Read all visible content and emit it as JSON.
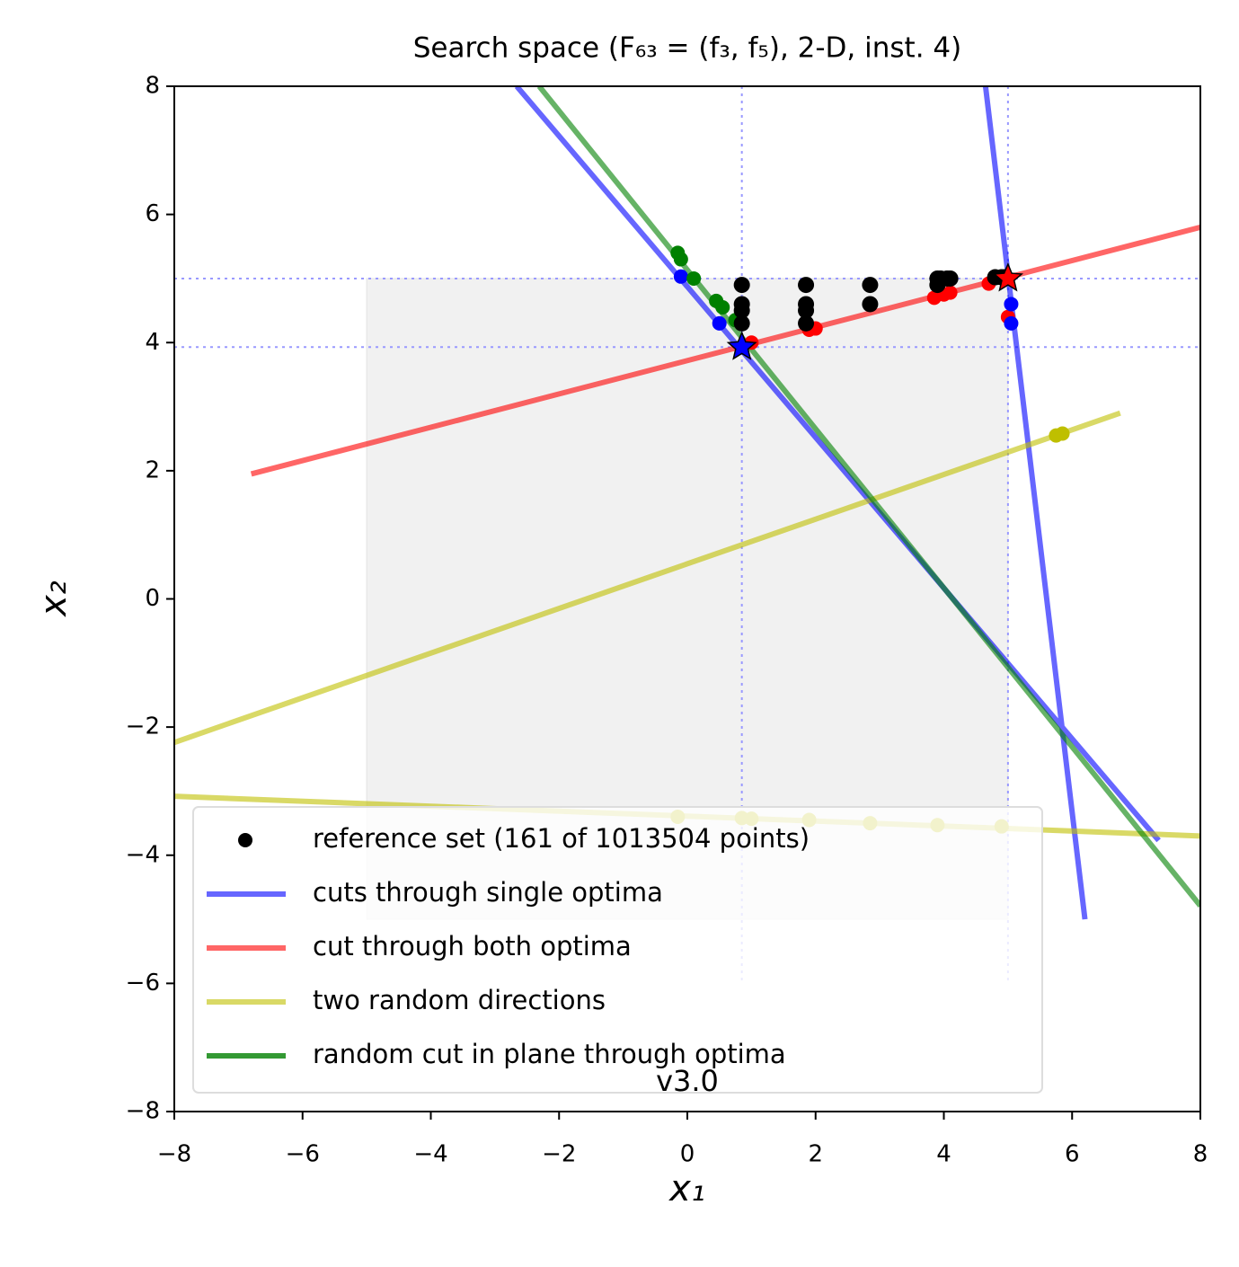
{
  "chart_data": {
    "type": "line",
    "title": "Search space (F₆₃ = (f₃, f₅), 2-D, inst. 4)",
    "x_label": "x₁",
    "y_label": "x₂",
    "watermark": "v3.0",
    "xlim": [
      -8,
      8
    ],
    "ylim": [
      -8,
      8
    ],
    "xticks": [
      {
        "value": -8,
        "label": "−8"
      },
      {
        "value": -6,
        "label": "−6"
      },
      {
        "value": -4,
        "label": "−4"
      },
      {
        "value": -2,
        "label": "−2"
      },
      0,
      2,
      4,
      6,
      8
    ],
    "yticks": [
      {
        "value": -8,
        "label": "−8"
      },
      {
        "value": -6,
        "label": "−6"
      },
      {
        "value": -4,
        "label": "−4"
      },
      {
        "value": -2,
        "label": "−2"
      },
      0,
      2,
      4,
      6,
      8
    ],
    "region": {
      "xlim": [
        -5,
        5
      ],
      "ylim": [
        -5,
        5
      ]
    },
    "guides_x": [
      0.85,
      5
    ],
    "guides_y": [
      3.93,
      5
    ],
    "series": [
      {
        "name": "reference set (161 of 1013504 points)",
        "kind": "scatter",
        "color": "#000000",
        "x": [
          0.85,
          0.85,
          0.85,
          0.85,
          1.85,
          1.85,
          1.85,
          1.85,
          2.85,
          2.85,
          3.9,
          3.95,
          4.05,
          4.1,
          3.9,
          4.8,
          4.9,
          4.95
        ],
        "values": [
          4.9,
          4.6,
          4.5,
          4.3,
          4.9,
          4.6,
          4.5,
          4.3,
          4.9,
          4.6,
          5.0,
          5.0,
          5.0,
          5.0,
          4.9,
          5.02,
          5.02,
          5.02
        ]
      },
      {
        "name": "cuts through single optima",
        "kind": "line",
        "color": "#0000ff",
        "x": [
          4.65,
          6.2,
          null,
          -2.66,
          7.35
        ],
        "values": [
          8,
          -5,
          null,
          8,
          -3.77
        ]
      },
      {
        "name": "cut through both optima",
        "kind": "line",
        "color": "#ff0000",
        "x": [
          -6.8,
          8
        ],
        "values": [
          1.95,
          5.8
        ]
      },
      {
        "name": "two random directions",
        "kind": "line",
        "color": "#bfbf00",
        "x": [
          -8,
          6.75,
          null,
          -8,
          8
        ],
        "values": [
          -2.24,
          2.9,
          null,
          -3.08,
          -3.7
        ]
      },
      {
        "name": "random cut in plane through optima",
        "kind": "line",
        "color": "#008000",
        "x": [
          -2.31,
          8
        ],
        "values": [
          8,
          -4.79
        ]
      }
    ],
    "point_sets": [
      {
        "color": "#ff0000",
        "x": [
          1.0,
          1.9,
          2.0,
          3.85,
          4.0,
          4.1,
          4.7,
          5.0
        ],
        "y": [
          4.0,
          4.2,
          4.22,
          4.7,
          4.75,
          4.78,
          4.92,
          4.4
        ]
      },
      {
        "color": "#0000ff",
        "x": [
          -0.1,
          0.5,
          5.05,
          5.05
        ],
        "y": [
          5.03,
          4.3,
          4.6,
          4.3
        ]
      },
      {
        "color": "#008000",
        "x": [
          -0.15,
          -0.1,
          0.1,
          0.45,
          0.55,
          0.75
        ],
        "y": [
          5.4,
          5.3,
          5.0,
          4.65,
          4.55,
          4.35
        ]
      },
      {
        "color": "#bfbf00",
        "x": [
          5.75,
          5.85,
          -0.15,
          0.85,
          1.0,
          1.9,
          2.85,
          3.9,
          4.9
        ],
        "y": [
          2.55,
          2.58,
          -3.4,
          -3.42,
          -3.43,
          -3.45,
          -3.5,
          -3.53,
          -3.55
        ]
      }
    ],
    "optima": {
      "x": [
        0.85,
        5
      ],
      "y": [
        3.93,
        5
      ],
      "colors": [
        "#0000ff",
        "#ff0000"
      ]
    }
  }
}
